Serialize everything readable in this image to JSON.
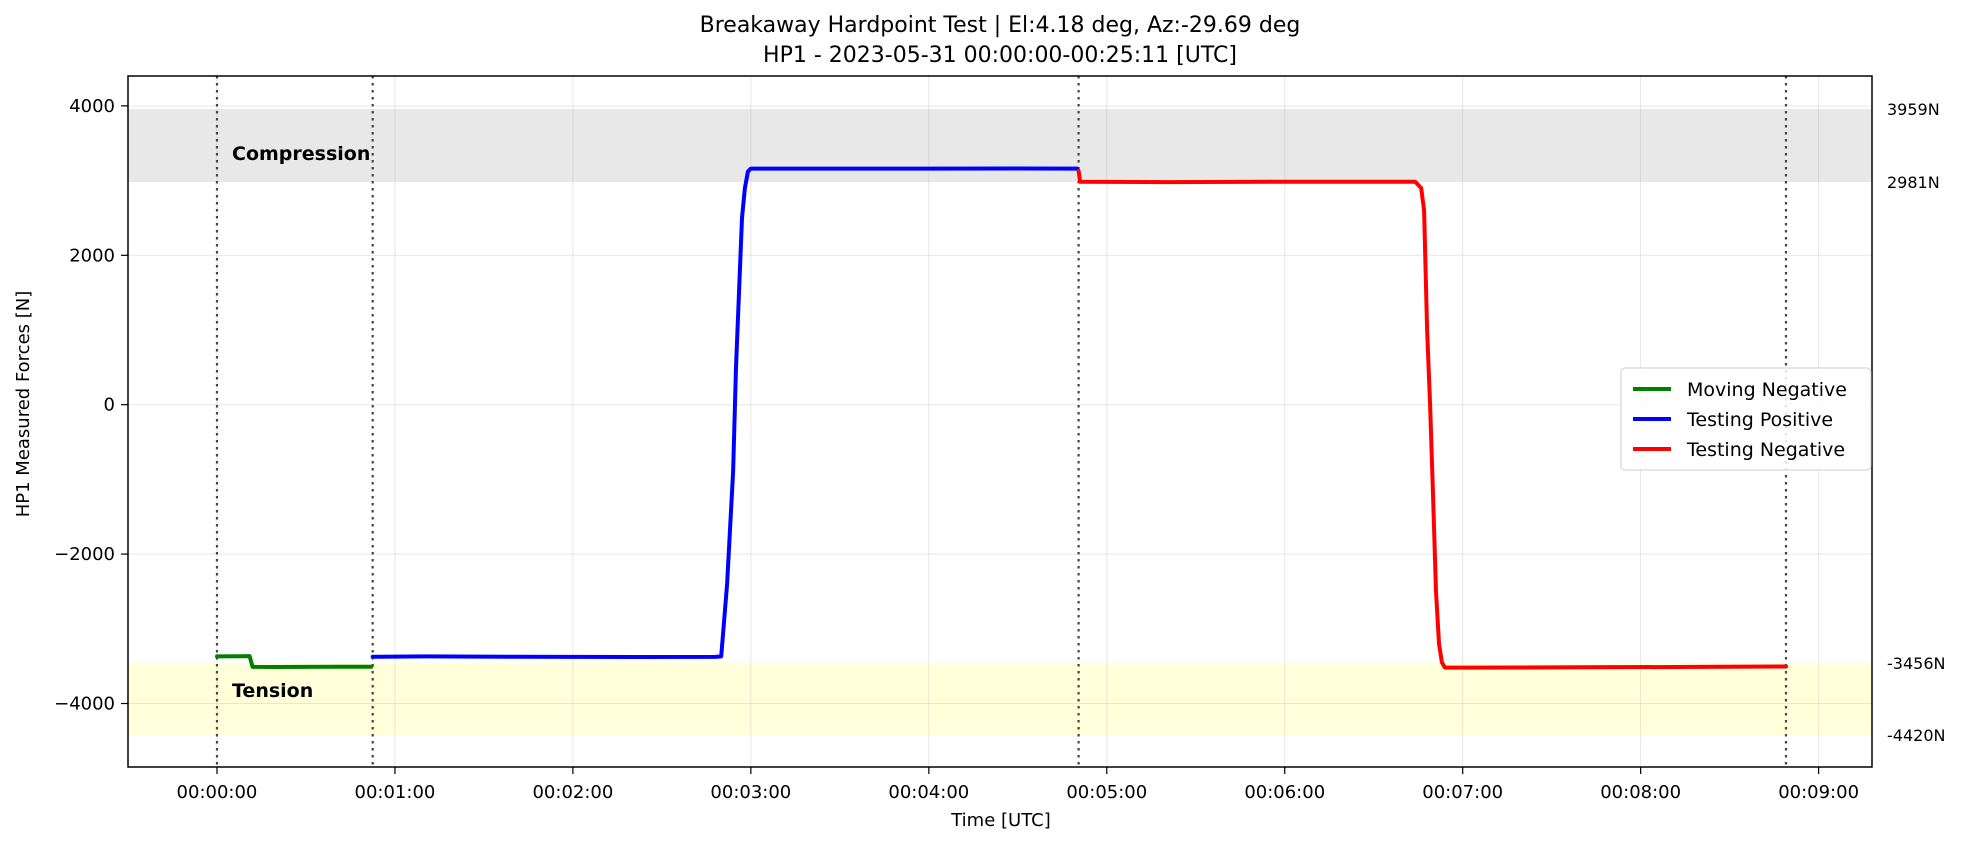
{
  "chart_data": {
    "type": "line",
    "title": "Breakaway Hardpoint Test | El:4.18 deg, Az:-29.69 deg",
    "subtitle": "HP1 - 2023-05-31 00:00:00-00:25:11 [UTC]",
    "xlabel": "Time [UTC]",
    "ylabel": "HP1 Measured Forces [N]",
    "x_unit": "seconds",
    "xlim": [
      -30,
      558
    ],
    "ylim": [
      -4850,
      4400
    ],
    "xticks": [
      {
        "value": 0,
        "label": "00:00:00"
      },
      {
        "value": 60,
        "label": "00:01:00"
      },
      {
        "value": 120,
        "label": "00:02:00"
      },
      {
        "value": 180,
        "label": "00:03:00"
      },
      {
        "value": 240,
        "label": "00:04:00"
      },
      {
        "value": 300,
        "label": "00:05:00"
      },
      {
        "value": 360,
        "label": "00:06:00"
      },
      {
        "value": 420,
        "label": "00:07:00"
      },
      {
        "value": 480,
        "label": "00:08:00"
      },
      {
        "value": 540,
        "label": "00:09:00"
      }
    ],
    "yticks": [
      {
        "value": 4000,
        "label": "4000"
      },
      {
        "value": 2000,
        "label": "2000"
      },
      {
        "value": 0,
        "label": "0"
      },
      {
        "value": -2000,
        "label": "−2000"
      },
      {
        "value": -4000,
        "label": "−4000"
      }
    ],
    "grid": true,
    "bands": [
      {
        "label": "Compression",
        "from": 2981,
        "to": 3959,
        "color": "#e8e8e8"
      },
      {
        "label": "Tension",
        "from": -4420,
        "to": -3456,
        "color": "#ffffd9"
      }
    ],
    "reference_lines": [
      {
        "value": 3959,
        "label": "3959N"
      },
      {
        "value": 2981,
        "label": "2981N"
      },
      {
        "value": -3456,
        "label": "-3456N"
      },
      {
        "value": -4420,
        "label": "-4420N"
      }
    ],
    "vertical_markers": [
      0,
      52.5,
      290.5,
      529
    ],
    "legend_position": "center-right",
    "series": [
      {
        "name": "Moving Negative",
        "color": "#008000",
        "points": [
          [
            0,
            -3370
          ],
          [
            8,
            -3368
          ],
          [
            11,
            -3366
          ],
          [
            12,
            -3510
          ],
          [
            20,
            -3512
          ],
          [
            30,
            -3510
          ],
          [
            40,
            -3509
          ],
          [
            52,
            -3508
          ]
        ]
      },
      {
        "name": "Testing Positive",
        "color": "#0000ff",
        "points": [
          [
            52.5,
            -3375
          ],
          [
            70,
            -3370
          ],
          [
            100,
            -3375
          ],
          [
            140,
            -3378
          ],
          [
            168,
            -3376
          ],
          [
            170,
            -3370
          ],
          [
            172,
            -2400
          ],
          [
            174,
            -900
          ],
          [
            175,
            500
          ],
          [
            176,
            1500
          ],
          [
            177,
            2500
          ],
          [
            178,
            2900
          ],
          [
            179,
            3120
          ],
          [
            180,
            3160
          ],
          [
            200,
            3160
          ],
          [
            240,
            3160
          ],
          [
            270,
            3162
          ],
          [
            290,
            3160
          ]
        ]
      },
      {
        "name": "Testing Negative",
        "color": "#ff0000",
        "points": [
          [
            290.5,
            3130
          ],
          [
            291,
            2985
          ],
          [
            320,
            2980
          ],
          [
            360,
            2985
          ],
          [
            390,
            2985
          ],
          [
            404,
            2985
          ],
          [
            406,
            2900
          ],
          [
            407,
            2600
          ],
          [
            408,
            1000
          ],
          [
            409,
            0
          ],
          [
            410,
            -1200
          ],
          [
            411,
            -2500
          ],
          [
            412,
            -3200
          ],
          [
            413,
            -3450
          ],
          [
            414,
            -3520
          ],
          [
            420,
            -3520
          ],
          [
            460,
            -3515
          ],
          [
            500,
            -3510
          ],
          [
            529,
            -3505
          ]
        ]
      }
    ]
  }
}
